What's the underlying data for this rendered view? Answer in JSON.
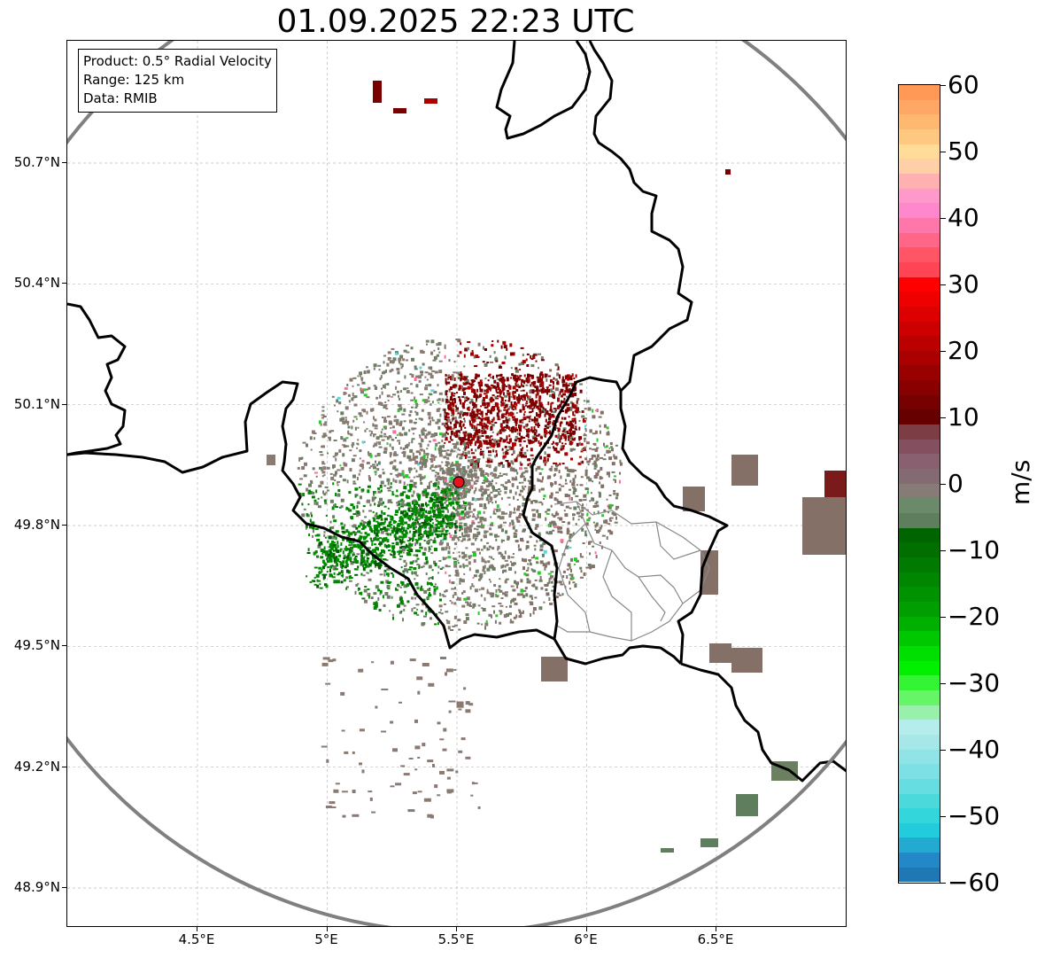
{
  "title": "01.09.2025 22:23 UTC",
  "info_box": {
    "line1": "Product: 0.5° Radial Velocity",
    "line2": "Range: 125 km",
    "line3": "Data: RMIB"
  },
  "axes": {
    "x_ticks": [
      "4.5°E",
      "5°E",
      "5.5°E",
      "6°E",
      "6.5°E"
    ],
    "x_values": [
      4.5,
      5.0,
      5.5,
      6.0,
      6.5
    ],
    "y_ticks": [
      "50.7°N",
      "50.4°N",
      "50.1°N",
      "49.8°N",
      "49.5°N",
      "49.2°N",
      "48.9°N"
    ],
    "y_values": [
      50.7,
      50.4,
      50.1,
      49.8,
      49.5,
      49.2,
      48.9
    ],
    "lon_range": [
      4.0,
      7.0
    ],
    "lat_range": [
      48.8,
      51.0
    ]
  },
  "radar": {
    "center_lon": 5.505,
    "center_lat": 49.915,
    "range_km": 125,
    "marker_color": "#e8111e",
    "ring_color": "#808080"
  },
  "colorbar": {
    "label": "m/s",
    "min": -60,
    "max": 60,
    "ticks": [
      "60",
      "50",
      "40",
      "30",
      "20",
      "10",
      "0",
      "−10",
      "−20",
      "−30",
      "−40",
      "−50",
      "−60"
    ],
    "tick_values": [
      60,
      50,
      40,
      30,
      20,
      10,
      0,
      -10,
      -20,
      -30,
      -40,
      -50,
      -60
    ],
    "colors_top_to_bottom": [
      "#ff9955",
      "#ffa866",
      "#ffb870",
      "#ffc880",
      "#ffdd99",
      "#ffd0a8",
      "#ffb0b0",
      "#ff99cc",
      "#ff88cc",
      "#ff77aa",
      "#ff6688",
      "#ff5566",
      "#ff4455",
      "#ff0000",
      "#ee0000",
      "#dd0000",
      "#cc0000",
      "#bb0000",
      "#aa0000",
      "#990000",
      "#880000",
      "#770000",
      "#660000",
      "#7d3d45",
      "#845060",
      "#886070",
      "#846a72",
      "#877b78",
      "#6a8a6a",
      "#5e7e5e",
      "#006400",
      "#006f00",
      "#007a00",
      "#008600",
      "#009200",
      "#009e00",
      "#00b000",
      "#00c800",
      "#00e000",
      "#00f000",
      "#33f533",
      "#66f566",
      "#99f0aa",
      "#b5ecec",
      "#a6e8e8",
      "#90e4e6",
      "#7ce0e4",
      "#66dde0",
      "#4cd9dc",
      "#33d6da",
      "#22ccdd",
      "#22aad0",
      "#2288c8",
      "#1f77b4"
    ]
  },
  "map_colors": {
    "receding_dark": "#7a0000",
    "receding_red": "#aa0000",
    "neutral_brown": "#857068",
    "neutral_gray": "#8a7a72",
    "approach_green": "#008a00",
    "approach_light": "#22d022",
    "pink": "#ff6b9a",
    "cyan": "#55dddd",
    "border": "#000000",
    "admin_border": "#888888",
    "grid": "#bbbbbb"
  }
}
